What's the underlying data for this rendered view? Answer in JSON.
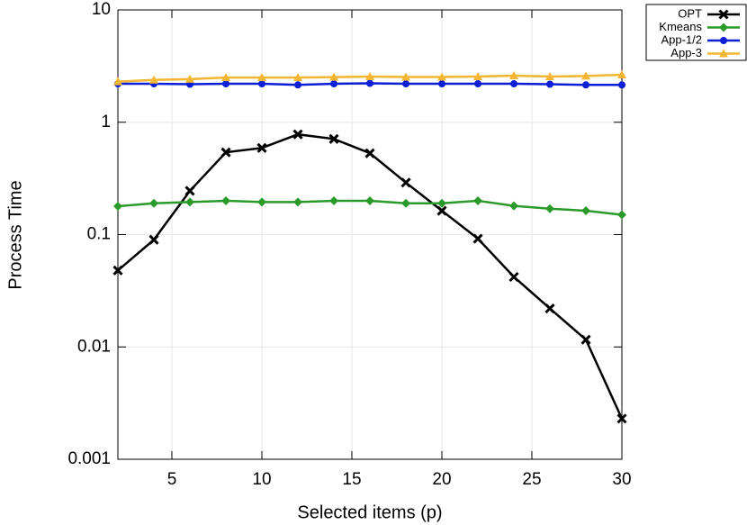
{
  "chart_data": {
    "type": "line",
    "xlabel": "Selected items (p)",
    "ylabel": "Process Time",
    "x": [
      2,
      4,
      6,
      8,
      10,
      12,
      14,
      16,
      18,
      20,
      22,
      24,
      26,
      28,
      30
    ],
    "xlim": [
      2,
      30
    ],
    "xticks": [
      5,
      10,
      15,
      20,
      25,
      30
    ],
    "ylim": [
      0.001,
      10
    ],
    "yticks": [
      0.001,
      0.01,
      0.1,
      1,
      10
    ],
    "yscale": "log",
    "grid": true,
    "legend": "outside-top-right",
    "series": [
      {
        "name": "OPT",
        "color": "#000000",
        "marker": "x",
        "values": [
          0.048,
          0.09,
          0.245,
          0.54,
          0.59,
          0.78,
          0.71,
          0.53,
          0.29,
          0.163,
          0.092,
          0.042,
          0.022,
          0.0116,
          0.0023
        ]
      },
      {
        "name": "Kmeans",
        "color": "#2a9a2a",
        "marker": "diamond",
        "values": [
          0.179,
          0.19,
          0.195,
          0.2,
          0.195,
          0.195,
          0.2,
          0.2,
          0.19,
          0.19,
          0.2,
          0.18,
          0.17,
          0.163,
          0.15
        ]
      },
      {
        "name": "App-1/2",
        "color": "#0a1fd6",
        "marker": "circle",
        "values": [
          2.2,
          2.2,
          2.18,
          2.2,
          2.2,
          2.15,
          2.2,
          2.22,
          2.2,
          2.2,
          2.2,
          2.2,
          2.18,
          2.15,
          2.15
        ]
      },
      {
        "name": "App-3",
        "color": "#f2b632",
        "marker": "triangle",
        "values": [
          2.3,
          2.38,
          2.42,
          2.5,
          2.5,
          2.5,
          2.52,
          2.55,
          2.53,
          2.53,
          2.55,
          2.6,
          2.55,
          2.58,
          2.65
        ]
      }
    ]
  }
}
